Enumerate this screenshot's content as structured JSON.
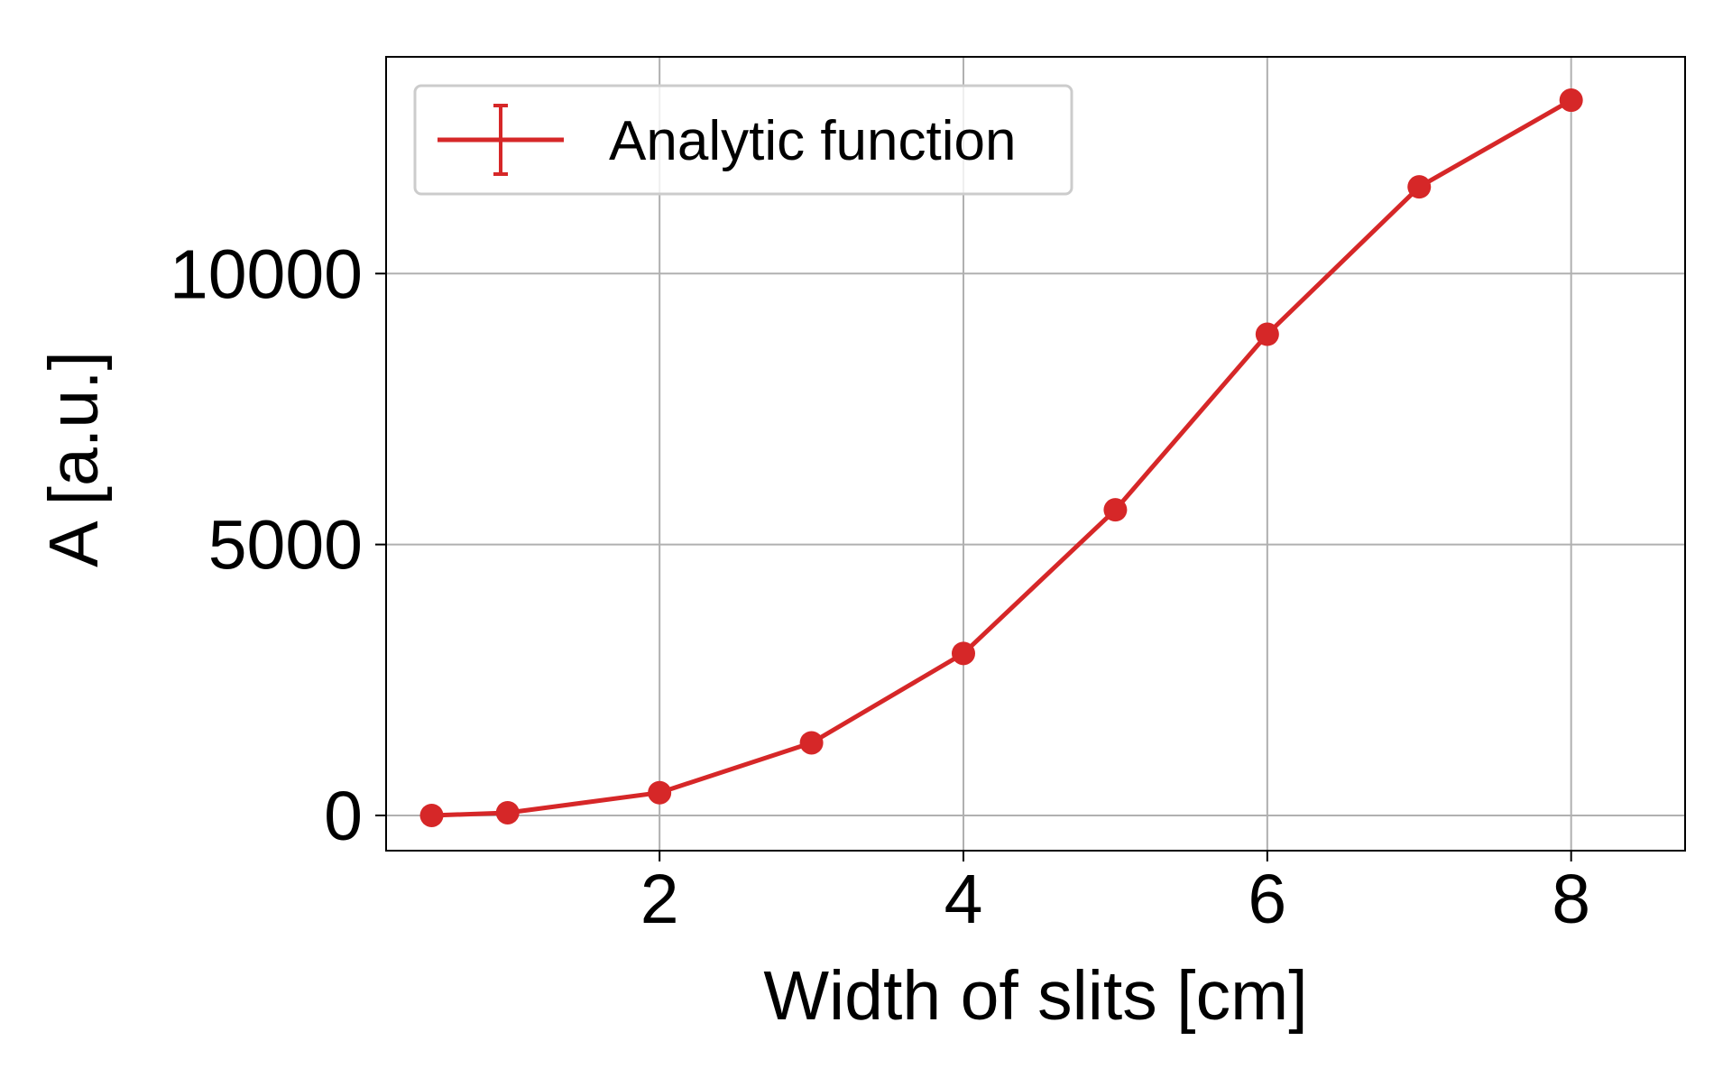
{
  "chart_data": {
    "type": "line",
    "xlabel": "Width of slits [cm]",
    "ylabel": "A [a.u.]",
    "xlim": [
      0.2,
      8.75
    ],
    "ylim": [
      -650,
      14000
    ],
    "xticks": [
      2,
      4,
      6,
      8
    ],
    "xtick_labels": [
      "2",
      "4",
      "6",
      "8"
    ],
    "yticks": [
      0,
      5000,
      10000
    ],
    "ytick_labels": [
      "0",
      "5000",
      "10000"
    ],
    "grid": true,
    "legend_position": "top-left",
    "series": [
      {
        "name": "Analytic function",
        "color": "#d62728",
        "marker": "circle",
        "error_bars": true,
        "x": [
          0.5,
          1,
          2,
          3,
          4,
          5,
          6,
          7,
          8
        ],
        "y": [
          0,
          50,
          420,
          1340,
          2990,
          5640,
          8880,
          11600,
          13200
        ]
      }
    ]
  }
}
